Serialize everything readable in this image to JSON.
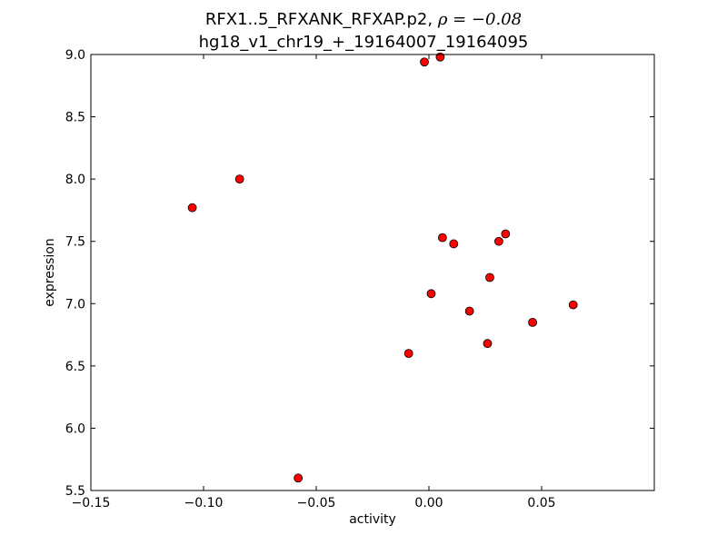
{
  "chart_data": {
    "type": "scatter",
    "title": {
      "line1_text": "RFX1..5_RFXANK_RFXAP.p2,",
      "line1_rho": "ρ = −0.08",
      "line2": "hg18_v1_chr19_+_19164007_19164095"
    },
    "xlabel": "activity",
    "ylabel": "expression",
    "xlim": [
      -0.15,
      0.1
    ],
    "ylim": [
      5.5,
      9.0
    ],
    "x_ticks": [
      {
        "value": -0.15,
        "label": "−0.15"
      },
      {
        "value": -0.1,
        "label": "−0.10"
      },
      {
        "value": -0.05,
        "label": "−0.05"
      },
      {
        "value": 0.0,
        "label": "0.00"
      },
      {
        "value": 0.05,
        "label": "0.05"
      }
    ],
    "y_ticks": [
      {
        "value": 5.5,
        "label": "5.5"
      },
      {
        "value": 6.0,
        "label": "6.0"
      },
      {
        "value": 6.5,
        "label": "6.5"
      },
      {
        "value": 7.0,
        "label": "7.0"
      },
      {
        "value": 7.5,
        "label": "7.5"
      },
      {
        "value": 8.0,
        "label": "8.0"
      },
      {
        "value": 8.5,
        "label": "8.5"
      },
      {
        "value": 9.0,
        "label": "9.0"
      }
    ],
    "grid": false,
    "marker_color": "#ff0000",
    "marker_edge_color": "#000000",
    "points": [
      {
        "x": -0.105,
        "y": 7.77
      },
      {
        "x": -0.084,
        "y": 8.0
      },
      {
        "x": -0.058,
        "y": 5.6
      },
      {
        "x": -0.009,
        "y": 6.6
      },
      {
        "x": -0.002,
        "y": 8.94
      },
      {
        "x": 0.001,
        "y": 7.08
      },
      {
        "x": 0.005,
        "y": 8.98
      },
      {
        "x": 0.006,
        "y": 7.53
      },
      {
        "x": 0.011,
        "y": 7.48
      },
      {
        "x": 0.018,
        "y": 6.94
      },
      {
        "x": 0.026,
        "y": 6.68
      },
      {
        "x": 0.027,
        "y": 7.21
      },
      {
        "x": 0.031,
        "y": 7.5
      },
      {
        "x": 0.034,
        "y": 7.56
      },
      {
        "x": 0.046,
        "y": 6.85
      },
      {
        "x": 0.064,
        "y": 6.99
      }
    ]
  }
}
